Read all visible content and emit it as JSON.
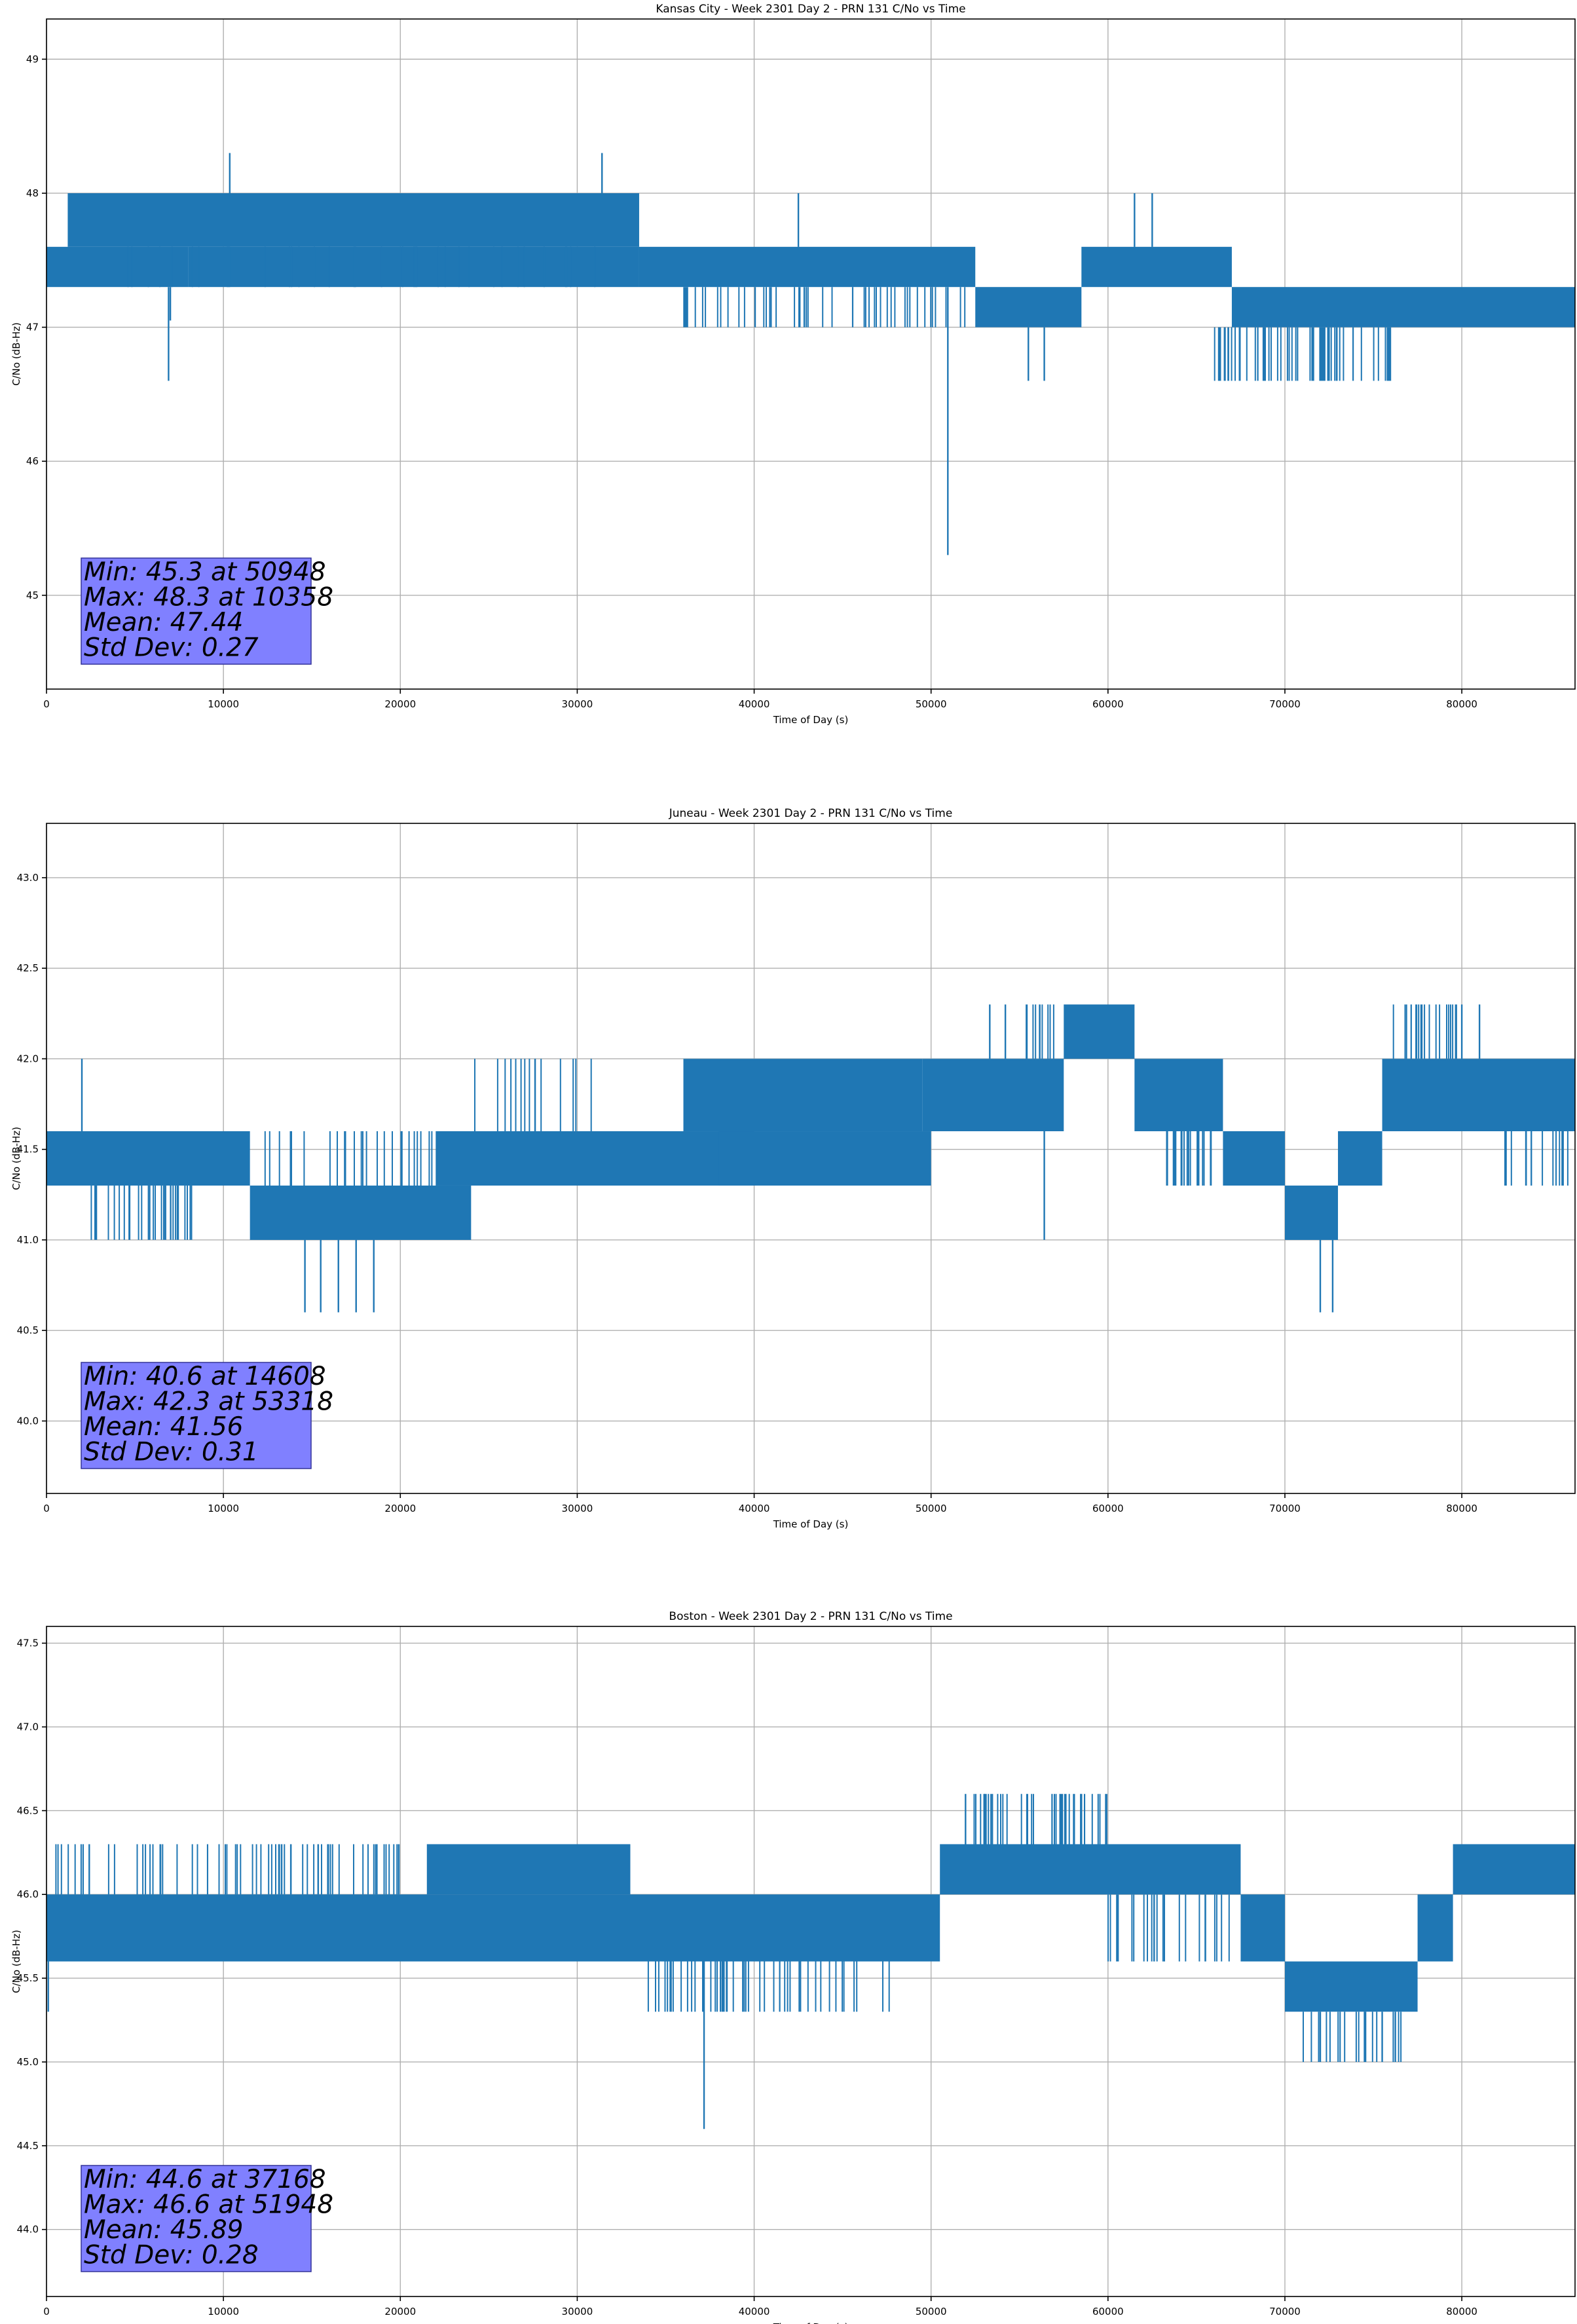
{
  "colors": {
    "line": "#1f77b4",
    "grid": "#b0b0b0",
    "axis": "#000000",
    "stats_box_fill": "#8080ff",
    "stats_box_edge": "#333399"
  },
  "chart_data": [
    {
      "type": "line",
      "title": "Kansas City - Week 2301 Day 2 - PRN 131 C/No vs Time",
      "xlabel": "Time of Day (s)",
      "ylabel": "C/No (dB-Hz)",
      "xlim": [
        0,
        86400
      ],
      "ylim": [
        44.3,
        49.3
      ],
      "xticks": [
        0,
        10000,
        20000,
        30000,
        40000,
        50000,
        60000,
        70000,
        80000
      ],
      "xtick_labels": [
        "0",
        "10000",
        "20000",
        "30000",
        "40000",
        "50000",
        "60000",
        "70000",
        "80000"
      ],
      "yticks": [
        45,
        46,
        47,
        48,
        49
      ],
      "ytick_labels": [
        "45",
        "46",
        "47",
        "48",
        "49"
      ],
      "grid": true,
      "stats_lines": [
        "Min: 45.3 at 50948",
        "Max: 48.3 at 10358",
        "Mean: 47.44",
        "Std Dev: 0.27"
      ],
      "bands": [
        {
          "x": [
            0,
            8000
          ],
          "low": 47.3,
          "high": 47.6
        },
        {
          "x": [
            1200,
            33500
          ],
          "low": 47.6,
          "high": 48.0
        },
        {
          "x": [
            8000,
            33500
          ],
          "low": 47.3,
          "high": 47.6
        },
        {
          "x": [
            33500,
            52500
          ],
          "low": 47.3,
          "high": 47.6
        },
        {
          "x": [
            52500,
            58500
          ],
          "low": 47.0,
          "high": 47.3
        },
        {
          "x": [
            58500,
            67000
          ],
          "low": 47.3,
          "high": 47.6
        },
        {
          "x": [
            67000,
            86400
          ],
          "low": 47.0,
          "high": 47.3
        }
      ],
      "spikes": [
        {
          "x": 6900,
          "y": 46.6
        },
        {
          "x": 7000,
          "y": 47.05
        },
        {
          "x": 10358,
          "y": 48.3
        },
        {
          "x": 31400,
          "y": 48.3
        },
        {
          "x": 42500,
          "y": 48.0
        },
        {
          "x": 50948,
          "y": 45.3
        },
        {
          "x": 55500,
          "y": 46.6
        },
        {
          "x": 56400,
          "y": 46.6
        },
        {
          "x": 61500,
          "y": 48.0
        },
        {
          "x": 62500,
          "y": 48.0
        }
      ],
      "noise": [
        {
          "x": [
            35000,
            52000
          ],
          "low": 47.0,
          "high": 47.3,
          "n": 50
        },
        {
          "x": [
            66000,
            76000
          ],
          "low": 46.6,
          "high": 47.0,
          "n": 60
        },
        {
          "x": [
            3000,
            31000
          ],
          "low": 47.3,
          "high": 47.6,
          "n": 40
        }
      ]
    },
    {
      "type": "line",
      "title": "Juneau - Week 2301 Day 2 - PRN 131 C/No vs Time",
      "xlabel": "Time of Day (s)",
      "ylabel": "C/No (dB-Hz)",
      "xlim": [
        0,
        86400
      ],
      "ylim": [
        39.6,
        43.3
      ],
      "xticks": [
        0,
        10000,
        20000,
        30000,
        40000,
        50000,
        60000,
        70000,
        80000
      ],
      "xtick_labels": [
        "0",
        "10000",
        "20000",
        "30000",
        "40000",
        "50000",
        "60000",
        "70000",
        "80000"
      ],
      "yticks": [
        40.0,
        40.5,
        41.0,
        41.5,
        42.0,
        42.5,
        43.0
      ],
      "ytick_labels": [
        "40.0",
        "40.5",
        "41.0",
        "41.5",
        "42.0",
        "42.5",
        "43.0"
      ],
      "grid": true,
      "stats_lines": [
        "Min: 40.6 at 14608",
        "Max: 42.3 at 53318",
        "Mean: 41.56",
        "Std Dev: 0.31"
      ],
      "bands": [
        {
          "x": [
            0,
            11500
          ],
          "low": 41.3,
          "high": 41.6
        },
        {
          "x": [
            11500,
            24000
          ],
          "low": 41.0,
          "high": 41.3
        },
        {
          "x": [
            22000,
            40000
          ],
          "low": 41.3,
          "high": 41.6
        },
        {
          "x": [
            36000,
            49500
          ],
          "low": 41.6,
          "high": 42.0
        },
        {
          "x": [
            38000,
            50000
          ],
          "low": 41.3,
          "high": 41.6
        },
        {
          "x": [
            49500,
            57500
          ],
          "low": 41.6,
          "high": 42.0
        },
        {
          "x": [
            57500,
            61500
          ],
          "low": 42.0,
          "high": 42.3
        },
        {
          "x": [
            61500,
            66500
          ],
          "low": 41.6,
          "high": 42.0
        },
        {
          "x": [
            66500,
            70000
          ],
          "low": 41.3,
          "high": 41.6
        },
        {
          "x": [
            70000,
            73000
          ],
          "low": 41.0,
          "high": 41.3
        },
        {
          "x": [
            73000,
            75500
          ],
          "low": 41.3,
          "high": 41.6
        },
        {
          "x": [
            75500,
            86400
          ],
          "low": 41.6,
          "high": 42.0
        }
      ],
      "spikes": [
        {
          "x": 2000,
          "y": 42.0
        },
        {
          "x": 14608,
          "y": 40.6
        },
        {
          "x": 15500,
          "y": 40.6
        },
        {
          "x": 16500,
          "y": 40.6
        },
        {
          "x": 17500,
          "y": 40.6
        },
        {
          "x": 18500,
          "y": 40.6
        },
        {
          "x": 53318,
          "y": 42.3
        },
        {
          "x": 54200,
          "y": 42.3
        },
        {
          "x": 56400,
          "y": 41.0
        },
        {
          "x": 72000,
          "y": 40.6
        },
        {
          "x": 72700,
          "y": 40.6
        },
        {
          "x": 80000,
          "y": 42.3
        },
        {
          "x": 81000,
          "y": 42.3
        }
      ],
      "noise": [
        {
          "x": [
            2500,
            8500
          ],
          "low": 41.0,
          "high": 41.3,
          "n": 30
        },
        {
          "x": [
            12000,
            22000
          ],
          "low": 41.3,
          "high": 41.6,
          "n": 30
        },
        {
          "x": [
            24000,
            31000
          ],
          "low": 41.6,
          "high": 42.0,
          "n": 15
        },
        {
          "x": [
            55000,
            57000
          ],
          "low": 42.0,
          "high": 42.3,
          "n": 10
        },
        {
          "x": [
            63000,
            66000
          ],
          "low": 41.3,
          "high": 41.6,
          "n": 20
        },
        {
          "x": [
            76000,
            80000
          ],
          "low": 42.0,
          "high": 42.3,
          "n": 20
        },
        {
          "x": [
            82000,
            86000
          ],
          "low": 41.3,
          "high": 41.6,
          "n": 15
        }
      ]
    },
    {
      "type": "line",
      "title": "Boston - Week 2301 Day 2 - PRN 131 C/No vs Time",
      "xlabel": "Time of Day (s)",
      "ylabel": "C/No (dB-Hz)",
      "xlim": [
        0,
        86400
      ],
      "ylim": [
        43.6,
        47.6
      ],
      "xticks": [
        0,
        10000,
        20000,
        30000,
        40000,
        50000,
        60000,
        70000,
        80000
      ],
      "xtick_labels": [
        "0",
        "10000",
        "20000",
        "30000",
        "40000",
        "50000",
        "60000",
        "70000",
        "80000"
      ],
      "yticks": [
        44.0,
        44.5,
        45.0,
        45.5,
        46.0,
        46.5,
        47.0,
        47.5
      ],
      "ytick_labels": [
        "44.0",
        "44.5",
        "45.0",
        "45.5",
        "46.0",
        "46.5",
        "47.0",
        "47.5"
      ],
      "grid": true,
      "stats_lines": [
        "Min: 44.6 at 37168",
        "Max: 46.6 at 51948",
        "Mean: 45.89",
        "Std Dev: 0.28"
      ],
      "bands": [
        {
          "x": [
            0,
            50500
          ],
          "low": 45.6,
          "high": 46.0
        },
        {
          "x": [
            21500,
            33000
          ],
          "low": 46.0,
          "high": 46.3
        },
        {
          "x": [
            50500,
            67500
          ],
          "low": 46.0,
          "high": 46.3
        },
        {
          "x": [
            67500,
            70000
          ],
          "low": 45.6,
          "high": 46.0
        },
        {
          "x": [
            70000,
            77500
          ],
          "low": 45.3,
          "high": 45.6
        },
        {
          "x": [
            77500,
            79500
          ],
          "low": 45.6,
          "high": 46.0
        },
        {
          "x": [
            79500,
            86400
          ],
          "low": 46.0,
          "high": 46.3
        }
      ],
      "spikes": [
        {
          "x": 100,
          "y": 45.3
        },
        {
          "x": 37168,
          "y": 44.6
        },
        {
          "x": 51948,
          "y": 46.6
        },
        {
          "x": 53000,
          "y": 46.6
        },
        {
          "x": 58500,
          "y": 46.6
        },
        {
          "x": 72000,
          "y": 45.0
        },
        {
          "x": 74500,
          "y": 45.0
        },
        {
          "x": 75500,
          "y": 45.0
        }
      ],
      "noise": [
        {
          "x": [
            500,
            20000
          ],
          "low": 46.0,
          "high": 46.3,
          "n": 70
        },
        {
          "x": [
            34000,
            48000
          ],
          "low": 45.3,
          "high": 45.6,
          "n": 50
        },
        {
          "x": [
            52000,
            60000
          ],
          "low": 46.3,
          "high": 46.6,
          "n": 40
        },
        {
          "x": [
            60000,
            67000
          ],
          "low": 45.6,
          "high": 46.0,
          "n": 25
        },
        {
          "x": [
            71000,
            77000
          ],
          "low": 45.0,
          "high": 45.3,
          "n": 20
        }
      ]
    }
  ]
}
